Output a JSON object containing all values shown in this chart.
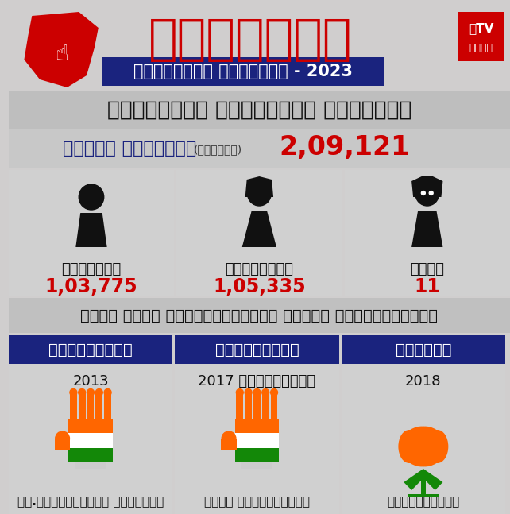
{
  "bg_color": "#d0cece",
  "title_kannada": "ಕರ್ನಾಟಕ",
  "subtitle_kannada": "ವಿಧಾನಸಭೆ ಚುನಾವಣೆ - 2023",
  "constituency_title": "ನಂಜನಗೂಡು ವಿಧಾನಸಭೆ ಕ್ಷೇತ್ರ",
  "total_voters_label": "ಒಟ್ಟು ಮತದಾರರು",
  "approx_label": "(ಅಂದಾಜು)",
  "total_voters": "2,09,121",
  "male_icon_label": "ಪುರುಷರು",
  "female_icon_label": "ಮಹಿಳೆಯರು",
  "other_icon_label": "ಇತರೆ",
  "male_count": "1,03,775",
  "female_count": "1,05,335",
  "other_count": "11",
  "section2_title": "ಕಳೆದ ಮೂರು ಚುನಾವಣೆಯಲ್ಲಿ ಗೆದ್ದ ಅಭ್ಯರ್ಥಿಗಳು",
  "party1_label": "ಕಾಂಗ್ರೆಸ್",
  "party2_label": "ಕಾಂಗ್ರೆಸ್",
  "party3_label": "ಬಿಜೆಪಿ",
  "year1": "2013",
  "year2": "2017 ಉಪಚುನಾವಣೆ",
  "year3": "2018",
  "candidate1": "ವಿ.ಶ್ರೀನಿವಾಸ್ ಪ್ರಸಾದ್",
  "candidate2": "ಕಳಲೆ ಕೇಶವಮೂರ್ತಿ",
  "candidate3": "ಹರ್ಷವರ್ಧನ್",
  "party_bar_color": "#1a237e",
  "title_color": "#cc0000",
  "subtitle_bar_color": "#1a237e",
  "total_label_color": "#1a237e",
  "total_num_color": "#cc0000",
  "count_color": "#cc0000",
  "party_label_color": "#ffffff",
  "white": "#ffffff",
  "dark": "#111111",
  "orange": "#FF6600",
  "green": "#138808"
}
